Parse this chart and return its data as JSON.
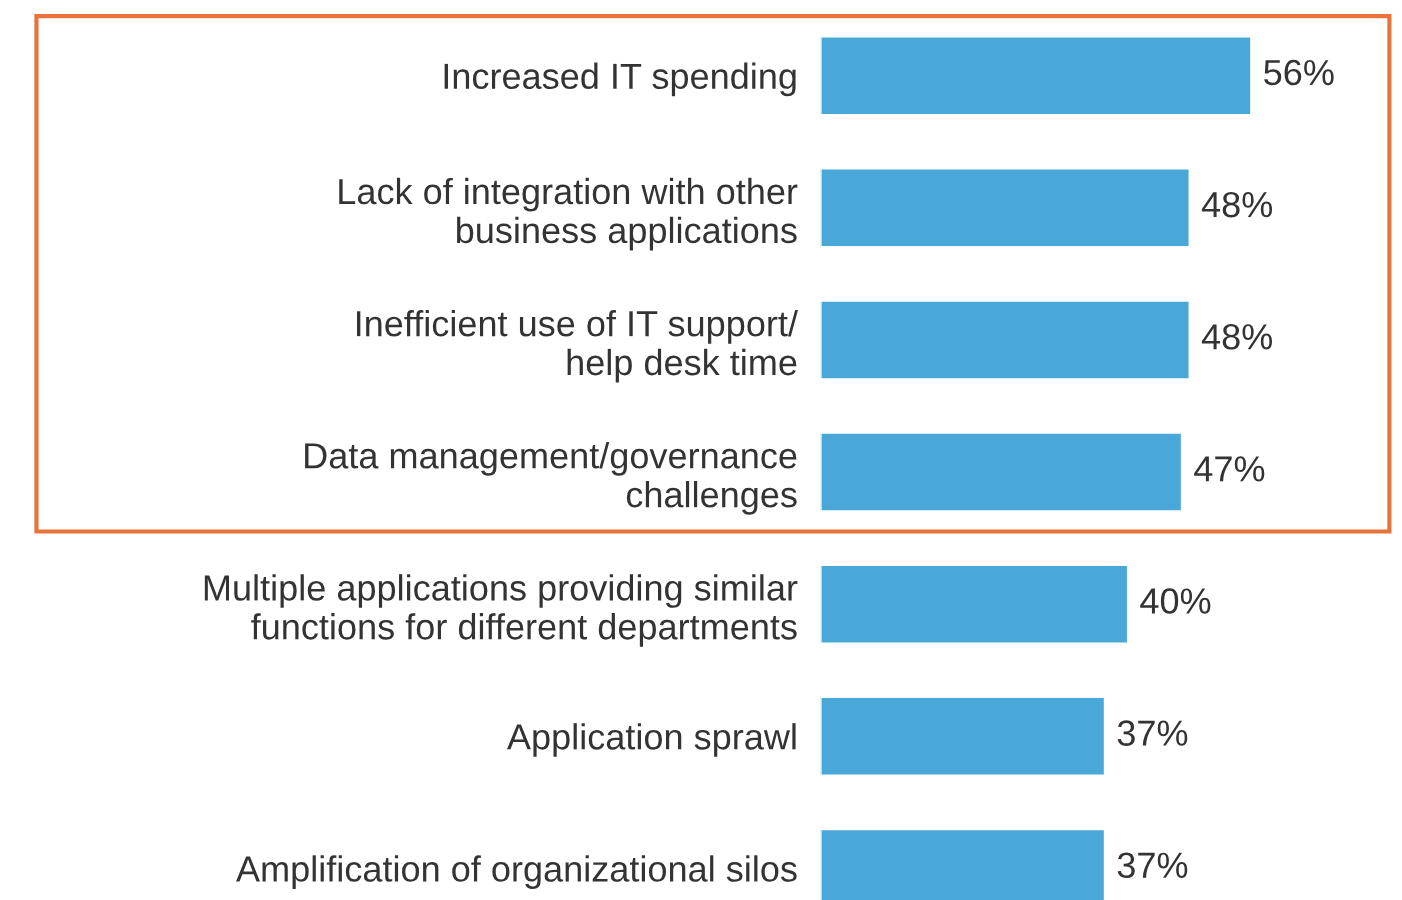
{
  "chart_data": {
    "type": "bar",
    "orientation": "horizontal",
    "categories": [
      "Increased IT spending",
      "Lack of integration with other\nbusiness applications",
      "Inefficient use of IT support/\nhelp desk time",
      "Data management/governance\nchallenges",
      "Multiple applications providing similar\nfunctions for different departments",
      "Application sprawl",
      "Amplification of organizational silos"
    ],
    "values": [
      56,
      48,
      48,
      47,
      40,
      37,
      37
    ],
    "value_labels": [
      "56%",
      "48%",
      "48%",
      "47%",
      "40%",
      "37%",
      "37%"
    ],
    "color": "#4aa8d8"
  }
}
